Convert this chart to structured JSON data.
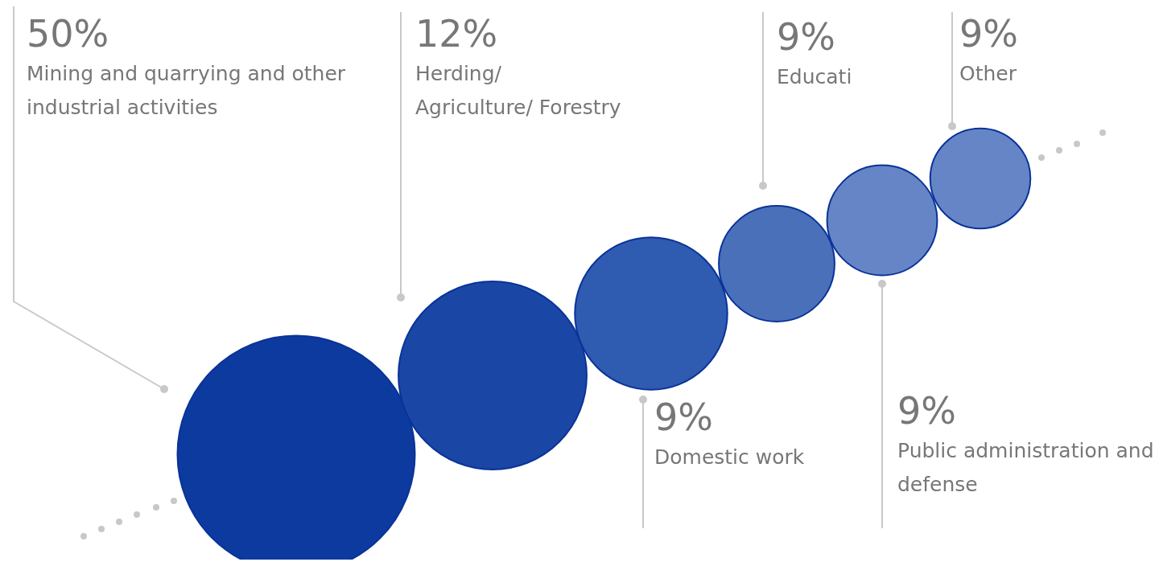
{
  "chart_data": {
    "type": "other",
    "categories": [
      "Mining and quarrying and other\nindustrial activities",
      "Herding/\nAgriculture/ Forestry",
      "Domestic work",
      "Educati",
      "Public administration and\ndefense",
      "Other"
    ],
    "values": [
      50,
      12,
      9,
      9,
      9,
      9
    ],
    "value_labels": [
      "50%",
      "12%",
      "9%",
      "9%",
      "9%",
      "9%"
    ],
    "colors": [
      "#0d3a9e",
      "#1a47a6",
      "#2f5bb0",
      "#4a70ba",
      "#6585c6",
      "#6585c6"
    ]
  }
}
